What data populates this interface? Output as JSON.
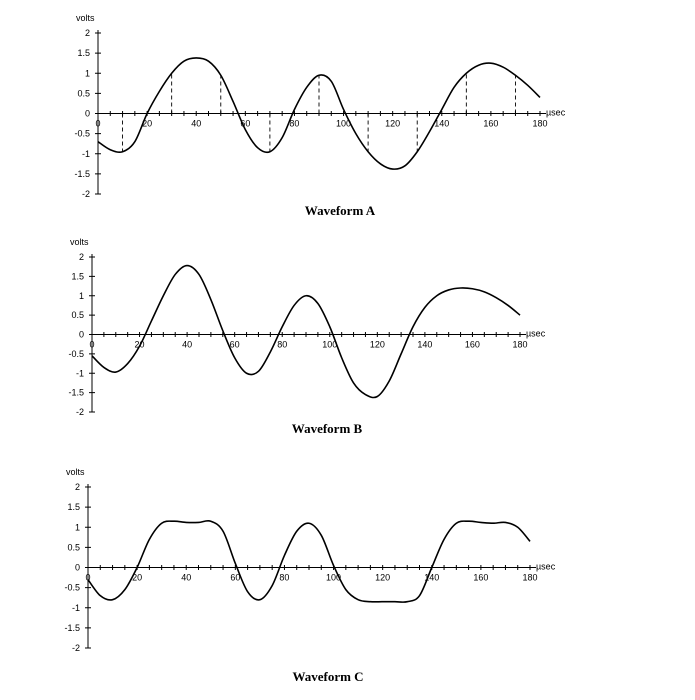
{
  "chart_data": [
    {
      "type": "line",
      "title": "Waveform A",
      "ylabel": "volts",
      "xlabel": "µsec",
      "xlim": [
        0,
        180
      ],
      "ylim": [
        -2,
        2
      ],
      "x_ticks": [
        "0",
        "20",
        "40",
        "60",
        "80",
        "100",
        "120",
        "140",
        "160",
        "180"
      ],
      "y_ticks": [
        "2",
        "1.5",
        "1",
        "0.5",
        "0",
        "-0.5",
        "-1",
        "-1.5",
        "-2"
      ],
      "sample_x": [
        10,
        30,
        50,
        70,
        90,
        110,
        130,
        150,
        170
      ],
      "x": [
        0,
        5,
        10,
        15,
        20,
        25,
        30,
        35,
        40,
        45,
        50,
        55,
        60,
        65,
        70,
        75,
        80,
        85,
        90,
        95,
        100,
        105,
        110,
        115,
        120,
        125,
        130,
        135,
        140,
        145,
        150,
        155,
        160,
        165,
        170,
        175,
        180
      ],
      "series": [
        {
          "values": [
            -0.7,
            -0.9,
            -0.95,
            -0.7,
            0.0,
            0.55,
            1.0,
            1.3,
            1.38,
            1.3,
            0.95,
            0.3,
            -0.4,
            -0.85,
            -0.95,
            -0.6,
            0.1,
            0.65,
            0.95,
            0.8,
            0.1,
            -0.5,
            -0.95,
            -1.25,
            -1.38,
            -1.3,
            -0.95,
            -0.45,
            0.1,
            0.65,
            1.0,
            1.2,
            1.25,
            1.15,
            0.95,
            0.7,
            0.4
          ]
        }
      ]
    },
    {
      "type": "line",
      "title": "Waveform B",
      "ylabel": "volts",
      "xlabel": "µsec",
      "xlim": [
        0,
        180
      ],
      "ylim": [
        -2,
        2
      ],
      "x_ticks": [
        "0",
        "20",
        "40",
        "60",
        "80",
        "100",
        "120",
        "140",
        "160",
        "180"
      ],
      "y_ticks": [
        "2",
        "1.5",
        "1",
        "0.5",
        "0",
        "-0.5",
        "-1",
        "-1.5",
        "-2"
      ],
      "x": [
        0,
        5,
        10,
        15,
        20,
        25,
        30,
        35,
        40,
        45,
        50,
        55,
        60,
        65,
        70,
        75,
        80,
        85,
        90,
        95,
        100,
        105,
        110,
        115,
        120,
        125,
        130,
        135,
        140,
        145,
        150,
        155,
        160,
        165,
        170,
        175,
        180
      ],
      "series": [
        {
          "values": [
            -0.55,
            -0.85,
            -0.97,
            -0.75,
            -0.3,
            0.35,
            1.0,
            1.55,
            1.78,
            1.55,
            0.9,
            0.1,
            -0.6,
            -1.0,
            -0.95,
            -0.45,
            0.2,
            0.75,
            1.0,
            0.8,
            0.2,
            -0.6,
            -1.25,
            -1.55,
            -1.6,
            -1.2,
            -0.5,
            0.2,
            0.7,
            1.0,
            1.15,
            1.2,
            1.18,
            1.1,
            0.95,
            0.75,
            0.5
          ]
        }
      ]
    },
    {
      "type": "line",
      "title": "Waveform C",
      "ylabel": "volts",
      "xlabel": "µsec",
      "xlim": [
        0,
        180
      ],
      "ylim": [
        -2,
        2
      ],
      "x_ticks": [
        "0",
        "20",
        "40",
        "60",
        "80",
        "100",
        "120",
        "140",
        "160",
        "180"
      ],
      "y_ticks": [
        "2",
        "1.5",
        "1",
        "0.5",
        "0",
        "-0.5",
        "-1",
        "-1.5",
        "-2"
      ],
      "x": [
        0,
        5,
        10,
        15,
        20,
        25,
        30,
        35,
        40,
        45,
        50,
        55,
        60,
        65,
        70,
        75,
        80,
        85,
        90,
        95,
        100,
        105,
        110,
        115,
        120,
        125,
        130,
        135,
        140,
        145,
        150,
        155,
        160,
        165,
        170,
        175,
        180
      ],
      "series": [
        {
          "values": [
            -0.3,
            -0.7,
            -0.8,
            -0.55,
            0.0,
            0.7,
            1.1,
            1.15,
            1.12,
            1.12,
            1.15,
            0.9,
            0.1,
            -0.6,
            -0.8,
            -0.45,
            0.3,
            0.9,
            1.1,
            0.8,
            0.05,
            -0.55,
            -0.8,
            -0.85,
            -0.85,
            -0.85,
            -0.85,
            -0.7,
            0.0,
            0.7,
            1.1,
            1.15,
            1.12,
            1.1,
            1.12,
            1.0,
            0.65
          ]
        }
      ]
    }
  ]
}
